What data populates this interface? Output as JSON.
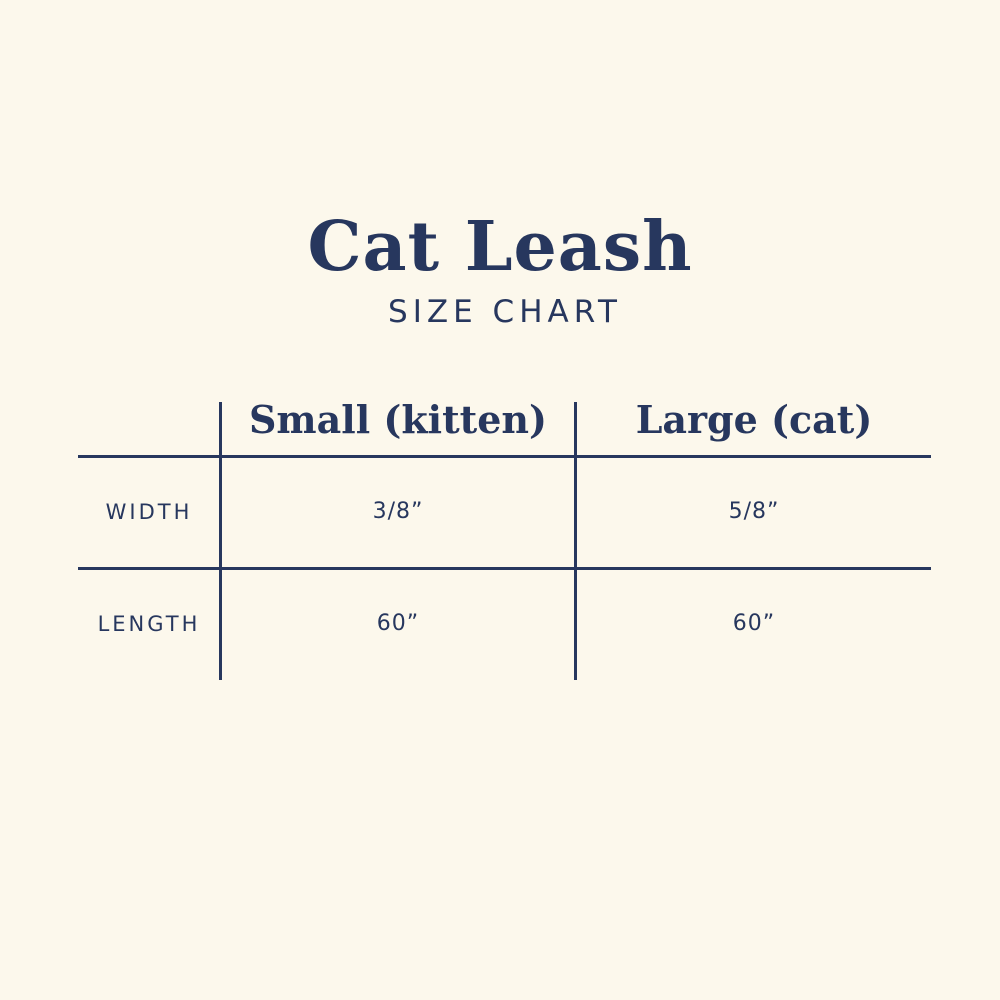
{
  "title": "Cat Leash",
  "subtitle": "SIZE CHART",
  "colors": {
    "background": "#fcf8ec",
    "ink": "#27375e"
  },
  "table": {
    "columns": [
      "Small (kitten)",
      "Large (cat)"
    ],
    "rows": [
      {
        "label": "WIDTH",
        "values": [
          "3/8”",
          "5/8”"
        ]
      },
      {
        "label": "LENGTH",
        "values": [
          "60”",
          "60”"
        ]
      }
    ]
  }
}
